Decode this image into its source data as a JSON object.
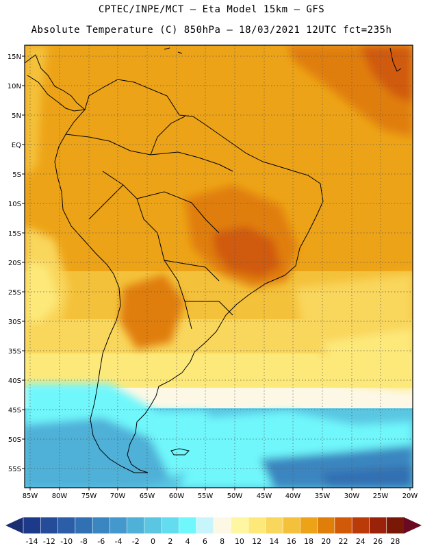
{
  "header": {
    "line1": "CPTEC/INPE/MCT –  Eta Model 15km – GFS",
    "line2": "Absolute Temperature (C) 850hPa – 18/03/2021 12UTC fct=235h"
  },
  "map": {
    "region": "South America",
    "lat_labels": [
      "15N",
      "10N",
      "5N",
      "EQ",
      "5S",
      "10S",
      "15S",
      "20S",
      "25S",
      "30S",
      "35S",
      "40S",
      "45S",
      "50S",
      "55S"
    ],
    "lon_labels": [
      "85W",
      "80W",
      "75W",
      "70W",
      "65W",
      "60W",
      "55W",
      "50W",
      "45W",
      "40W",
      "35W",
      "30W",
      "25W",
      "20W"
    ]
  },
  "colorbar": {
    "labels": [
      "-14",
      "-12",
      "-10",
      "-8",
      "-6",
      "-4",
      "-2",
      "0",
      "2",
      "4",
      "6",
      "8",
      "10",
      "12",
      "14",
      "16",
      "18",
      "20",
      "22",
      "24",
      "26",
      "28"
    ],
    "colors": [
      "#1d3a8a",
      "#244c98",
      "#2b5ea6",
      "#3170b2",
      "#3a86c0",
      "#4499cc",
      "#4fb0d8",
      "#5ac6e2",
      "#62dcee",
      "#6ff7fb",
      "#c8f4fb",
      "#fdf8e6",
      "#fef6a0",
      "#fde97a",
      "#f9d65c",
      "#f4c13a",
      "#eda317",
      "#e07e0a",
      "#d05a08",
      "#ba3a08",
      "#9a2208",
      "#7a1808"
    ],
    "low_arrow_color": "#1a2f73",
    "high_arrow_color": "#6a0a22"
  },
  "field_colors": {
    "t22": "#d05a08",
    "t20": "#e07e0a",
    "t18": "#eda317",
    "t16": "#f4c13a",
    "t14": "#f9d65c",
    "t12": "#fde97a",
    "t10": "#fef6a0",
    "t8": "#fdf8e6",
    "t6": "#c8f4fb",
    "t4": "#6ff7fb",
    "t2": "#5ac6e2",
    "t0": "#4fb0d8",
    "tm2": "#4499cc",
    "tm4": "#3a86c0",
    "tm6": "#3170b2"
  }
}
